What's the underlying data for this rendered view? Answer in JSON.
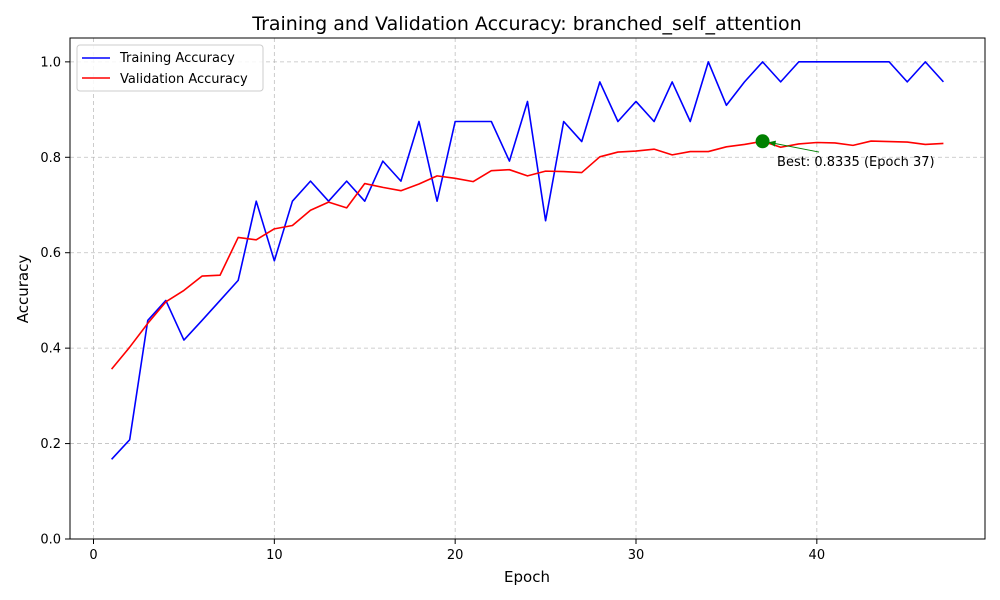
{
  "chart_data": {
    "type": "line",
    "title": "Training and Validation Accuracy: branched_self_attention",
    "xlabel": "Epoch",
    "ylabel": "Accuracy",
    "xlim": [
      -1.3,
      49.3
    ],
    "ylim": [
      0.0,
      1.05
    ],
    "xticks": [
      0,
      10,
      20,
      30,
      40
    ],
    "yticks": [
      0.0,
      0.2,
      0.4,
      0.6,
      0.8,
      1.0
    ],
    "xtick_labels": [
      "0",
      "10",
      "20",
      "30",
      "40"
    ],
    "ytick_labels": [
      "0.0",
      "0.2",
      "0.4",
      "0.6",
      "0.8",
      "1.0"
    ],
    "grid": true,
    "legend_position": "top-left",
    "x": [
      1,
      2,
      3,
      4,
      5,
      6,
      7,
      8,
      9,
      10,
      11,
      12,
      13,
      14,
      15,
      16,
      17,
      18,
      19,
      20,
      21,
      22,
      23,
      24,
      25,
      26,
      27,
      28,
      29,
      30,
      31,
      32,
      33,
      34,
      35,
      36,
      37,
      38,
      39,
      40,
      41,
      42,
      43,
      44,
      45,
      46,
      47
    ],
    "series": [
      {
        "name": "Training Accuracy",
        "color": "#0000ff",
        "values": [
          0.167,
          0.208,
          0.458,
          0.5,
          0.417,
          0.458,
          0.5,
          0.542,
          0.708,
          0.583,
          0.708,
          0.75,
          0.708,
          0.75,
          0.708,
          0.792,
          0.75,
          0.875,
          0.708,
          0.875,
          0.875,
          0.875,
          0.792,
          0.917,
          0.667,
          0.875,
          0.833,
          0.958,
          0.875,
          0.917,
          0.875,
          0.958,
          0.875,
          1.0,
          0.909,
          0.958,
          1.0,
          0.958,
          1.0,
          1.0,
          1.0,
          1.0,
          1.0,
          1.0,
          0.958,
          1.0,
          0.958
        ]
      },
      {
        "name": "Validation Accuracy",
        "color": "#ff0000",
        "values": [
          0.356,
          0.402,
          0.452,
          0.497,
          0.521,
          0.551,
          0.553,
          0.632,
          0.627,
          0.65,
          0.657,
          0.689,
          0.706,
          0.694,
          0.745,
          0.737,
          0.73,
          0.744,
          0.761,
          0.756,
          0.749,
          0.772,
          0.774,
          0.761,
          0.771,
          0.77,
          0.768,
          0.801,
          0.811,
          0.813,
          0.817,
          0.805,
          0.812,
          0.812,
          0.822,
          0.827,
          0.8335,
          0.821,
          0.828,
          0.831,
          0.83,
          0.825,
          0.834,
          0.833,
          0.832,
          0.827,
          0.829
        ]
      }
    ],
    "annotation": {
      "text": "Best: 0.8335 (Epoch 37)",
      "x": 37,
      "y": 0.8335,
      "marker_color": "#008000",
      "arrow_color": "#008000",
      "text_x": 37.8,
      "text_y": 0.79
    }
  }
}
